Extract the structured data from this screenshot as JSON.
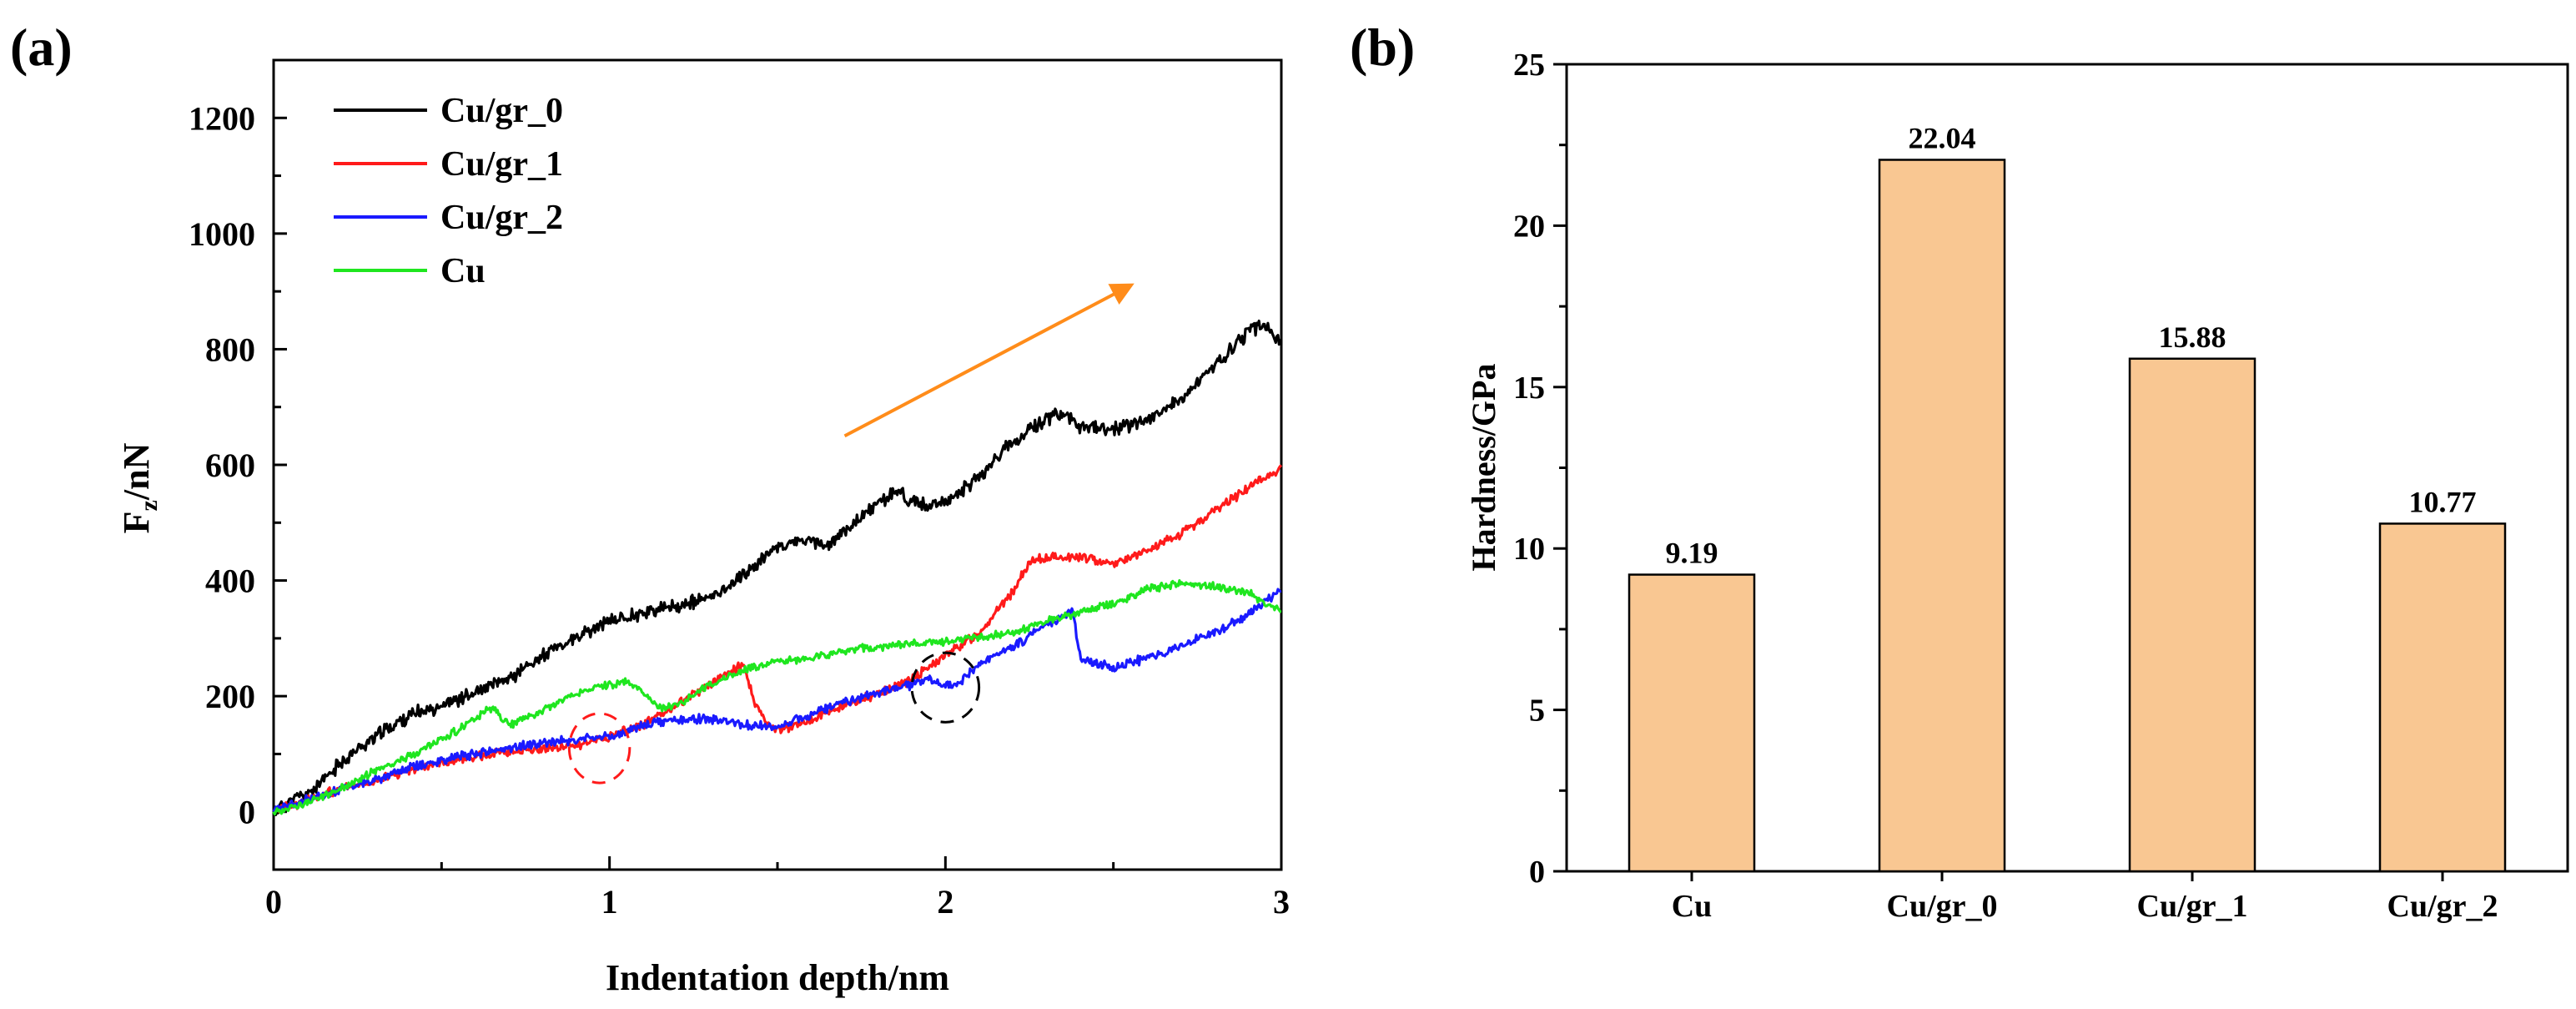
{
  "chart_data": [
    {
      "panel_label": "(a)",
      "type": "line",
      "title": "",
      "xlabel": "Indentation depth/nm",
      "ylabel_main": "F",
      "ylabel_sub": "z",
      "ylabel_tail": "/nN",
      "xlim": [
        0,
        3
      ],
      "ylim": [
        -100,
        1300
      ],
      "xticks": [
        0,
        1,
        2,
        3
      ],
      "yticks": [
        0,
        200,
        400,
        600,
        800,
        1000,
        1200
      ],
      "x_tick_labels": [
        "0",
        "1",
        "2",
        "3"
      ],
      "y_tick_labels": [
        "0",
        "200",
        "400",
        "600",
        "800",
        "1000",
        "1200"
      ],
      "legend": [
        "Cu/gr_0",
        "Cu/gr_1",
        "Cu/gr_2",
        "Cu"
      ],
      "series": [
        {
          "name": "Cu/gr_0",
          "color": "#000000",
          "noise": 18,
          "seed": 11,
          "points": [
            [
              0,
              0
            ],
            [
              0.05,
              20
            ],
            [
              0.1,
              30
            ],
            [
              0.15,
              55
            ],
            [
              0.2,
              85
            ],
            [
              0.3,
              130
            ],
            [
              0.4,
              165
            ],
            [
              0.5,
              185
            ],
            [
              0.6,
              205
            ],
            [
              0.7,
              230
            ],
            [
              0.8,
              270
            ],
            [
              0.9,
              300
            ],
            [
              1.0,
              330
            ],
            [
              1.1,
              345
            ],
            [
              1.2,
              355
            ],
            [
              1.3,
              370
            ],
            [
              1.4,
              410
            ],
            [
              1.5,
              460
            ],
            [
              1.6,
              470
            ],
            [
              1.65,
              460
            ],
            [
              1.75,
              510
            ],
            [
              1.85,
              555
            ],
            [
              1.9,
              540
            ],
            [
              1.95,
              525
            ],
            [
              2.0,
              535
            ],
            [
              2.1,
              580
            ],
            [
              2.2,
              640
            ],
            [
              2.3,
              680
            ],
            [
              2.35,
              690
            ],
            [
              2.4,
              665
            ],
            [
              2.5,
              660
            ],
            [
              2.6,
              680
            ],
            [
              2.7,
              710
            ],
            [
              2.8,
              770
            ],
            [
              2.9,
              830
            ],
            [
              2.95,
              845
            ],
            [
              3.0,
              805
            ]
          ]
        },
        {
          "name": "Cu/gr_1",
          "color": "#ff1a1a",
          "noise": 12,
          "seed": 23,
          "points": [
            [
              0,
              0
            ],
            [
              0.1,
              20
            ],
            [
              0.2,
              40
            ],
            [
              0.3,
              55
            ],
            [
              0.4,
              70
            ],
            [
              0.5,
              85
            ],
            [
              0.6,
              95
            ],
            [
              0.7,
              105
            ],
            [
              0.8,
              110
            ],
            [
              0.9,
              115
            ],
            [
              1.0,
              130
            ],
            [
              1.1,
              150
            ],
            [
              1.2,
              185
            ],
            [
              1.3,
              220
            ],
            [
              1.35,
              240
            ],
            [
              1.4,
              255
            ],
            [
              1.43,
              190
            ],
            [
              1.47,
              150
            ],
            [
              1.5,
              140
            ],
            [
              1.6,
              160
            ],
            [
              1.7,
              185
            ],
            [
              1.8,
              205
            ],
            [
              1.9,
              230
            ],
            [
              2.0,
              270
            ],
            [
              2.1,
              310
            ],
            [
              2.2,
              380
            ],
            [
              2.25,
              430
            ],
            [
              2.3,
              440
            ],
            [
              2.4,
              440
            ],
            [
              2.5,
              430
            ],
            [
              2.6,
              450
            ],
            [
              2.7,
              480
            ],
            [
              2.8,
              520
            ],
            [
              2.9,
              560
            ],
            [
              3.0,
              595
            ]
          ]
        },
        {
          "name": "Cu/gr_2",
          "color": "#1a1aff",
          "noise": 12,
          "seed": 37,
          "points": [
            [
              0,
              0
            ],
            [
              0.1,
              20
            ],
            [
              0.2,
              40
            ],
            [
              0.3,
              55
            ],
            [
              0.4,
              75
            ],
            [
              0.5,
              90
            ],
            [
              0.6,
              100
            ],
            [
              0.7,
              110
            ],
            [
              0.8,
              120
            ],
            [
              0.9,
              125
            ],
            [
              1.0,
              130
            ],
            [
              1.1,
              150
            ],
            [
              1.2,
              160
            ],
            [
              1.3,
              160
            ],
            [
              1.4,
              150
            ],
            [
              1.5,
              145
            ],
            [
              1.6,
              170
            ],
            [
              1.7,
              190
            ],
            [
              1.8,
              205
            ],
            [
              1.9,
              220
            ],
            [
              1.95,
              230
            ],
            [
              2.0,
              215
            ],
            [
              2.05,
              225
            ],
            [
              2.1,
              255
            ],
            [
              2.2,
              285
            ],
            [
              2.3,
              320
            ],
            [
              2.35,
              340
            ],
            [
              2.38,
              345
            ],
            [
              2.4,
              270
            ],
            [
              2.45,
              255
            ],
            [
              2.5,
              250
            ],
            [
              2.6,
              265
            ],
            [
              2.7,
              285
            ],
            [
              2.8,
              310
            ],
            [
              2.9,
              340
            ],
            [
              3.0,
              385
            ]
          ]
        },
        {
          "name": "Cu",
          "color": "#1fe61f",
          "noise": 10,
          "seed": 53,
          "points": [
            [
              0,
              0
            ],
            [
              0.1,
              15
            ],
            [
              0.2,
              40
            ],
            [
              0.3,
              70
            ],
            [
              0.4,
              95
            ],
            [
              0.5,
              125
            ],
            [
              0.6,
              160
            ],
            [
              0.65,
              180
            ],
            [
              0.7,
              150
            ],
            [
              0.8,
              175
            ],
            [
              0.9,
              205
            ],
            [
              1.0,
              220
            ],
            [
              1.05,
              225
            ],
            [
              1.1,
              205
            ],
            [
              1.15,
              180
            ],
            [
              1.2,
              185
            ],
            [
              1.3,
              220
            ],
            [
              1.4,
              245
            ],
            [
              1.5,
              260
            ],
            [
              1.6,
              265
            ],
            [
              1.7,
              280
            ],
            [
              1.8,
              285
            ],
            [
              1.9,
              290
            ],
            [
              2.0,
              295
            ],
            [
              2.1,
              300
            ],
            [
              2.2,
              310
            ],
            [
              2.3,
              330
            ],
            [
              2.4,
              345
            ],
            [
              2.5,
              360
            ],
            [
              2.6,
              385
            ],
            [
              2.7,
              395
            ],
            [
              2.8,
              390
            ],
            [
              2.9,
              380
            ],
            [
              3.0,
              345
            ]
          ]
        }
      ],
      "annotations": [
        {
          "type": "arrow",
          "color": "#ff8c1a",
          "from": [
            1.7,
            650
          ],
          "to": [
            2.55,
            910
          ]
        },
        {
          "type": "dashed-ellipse",
          "color": "#ff1a1a",
          "center": [
            0.97,
            110
          ],
          "rx": 0.09,
          "ry": 60
        },
        {
          "type": "dashed-ellipse",
          "color": "#000000",
          "center": [
            2.0,
            215
          ],
          "rx": 0.1,
          "ry": 60
        }
      ]
    },
    {
      "panel_label": "(b)",
      "type": "bar",
      "title": "",
      "xlabel": "",
      "ylabel": "Hardness/GPa",
      "categories": [
        "Cu",
        "Cu/gr_0",
        "Cu/gr_1",
        "Cu/gr_2"
      ],
      "values": [
        9.19,
        22.04,
        15.88,
        10.77
      ],
      "value_labels": [
        "9.19",
        "22.04",
        "15.88",
        "10.77"
      ],
      "ylim": [
        0,
        25
      ],
      "yticks": [
        0,
        5,
        10,
        15,
        20,
        25
      ],
      "y_tick_labels": [
        "0",
        "5",
        "10",
        "15",
        "20",
        "25"
      ],
      "bar_color": "#f9c792"
    }
  ]
}
